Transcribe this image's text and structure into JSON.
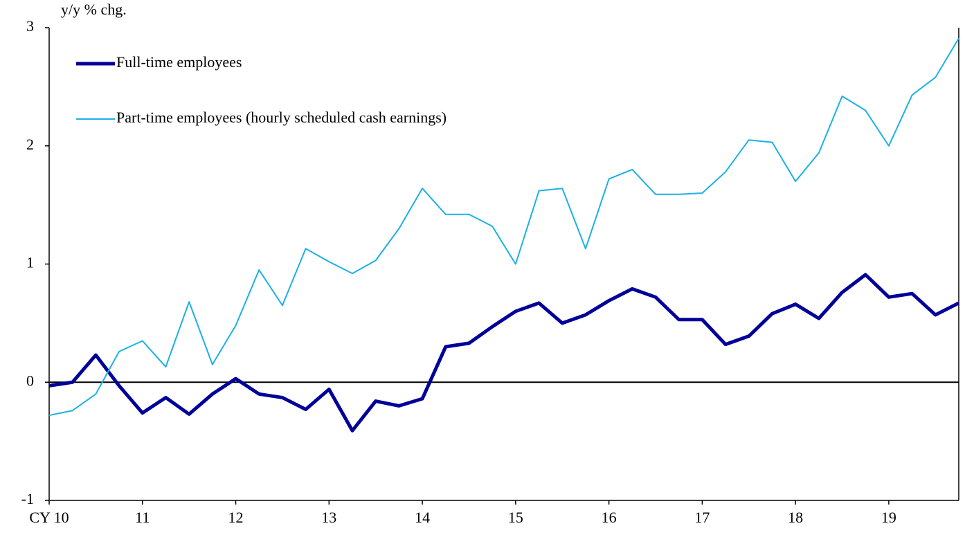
{
  "chart_data": {
    "type": "line",
    "y_axis_label": "y/y % chg.",
    "x": [
      10,
      10.25,
      10.5,
      10.75,
      11,
      11.25,
      11.5,
      11.75,
      12,
      12.25,
      12.5,
      12.75,
      13,
      13.25,
      13.5,
      13.75,
      14,
      14.25,
      14.5,
      14.75,
      15,
      15.25,
      15.5,
      15.75,
      16,
      16.25,
      16.5,
      16.75,
      17,
      17.25,
      17.5,
      17.75,
      18,
      18.25,
      18.5,
      18.75,
      19,
      19.25,
      19.5,
      19.75
    ],
    "series": [
      {
        "name": "Full-time employees",
        "color": "#000099",
        "width": 5,
        "values": [
          -0.03,
          0.0,
          0.23,
          -0.03,
          -0.26,
          -0.13,
          -0.27,
          -0.1,
          0.03,
          -0.1,
          -0.13,
          -0.23,
          -0.06,
          -0.41,
          -0.16,
          -0.2,
          -0.14,
          0.3,
          0.33,
          0.47,
          0.6,
          0.67,
          0.5,
          0.57,
          0.69,
          0.79,
          0.72,
          0.53,
          0.53,
          0.32,
          0.39,
          0.58,
          0.66,
          0.54,
          0.76,
          0.91,
          0.72,
          0.75,
          0.57,
          0.67
        ]
      },
      {
        "name": "Part-time employees (hourly scheduled cash earnings)",
        "color": "#1ab0e8",
        "width": 2,
        "values": [
          -0.28,
          -0.24,
          -0.1,
          0.26,
          0.35,
          0.13,
          0.68,
          0.15,
          0.48,
          0.95,
          0.65,
          1.13,
          1.02,
          0.92,
          1.03,
          1.3,
          1.64,
          1.42,
          1.42,
          1.32,
          1.0,
          1.62,
          1.64,
          1.13,
          1.72,
          1.8,
          1.59,
          1.59,
          1.6,
          1.78,
          2.05,
          2.03,
          1.7,
          1.94,
          2.42,
          2.3,
          2.0,
          2.43,
          2.58,
          2.91
        ]
      }
    ],
    "xlim": [
      10,
      19.75
    ],
    "xticks": [
      {
        "value": 10,
        "label": "CY 10"
      },
      11,
      12,
      13,
      14,
      15,
      16,
      17,
      18,
      19
    ],
    "ylim": [
      -1,
      3
    ],
    "yticks": [
      -1,
      0,
      1,
      2,
      3
    ],
    "grid": false,
    "legend": "top-left"
  }
}
